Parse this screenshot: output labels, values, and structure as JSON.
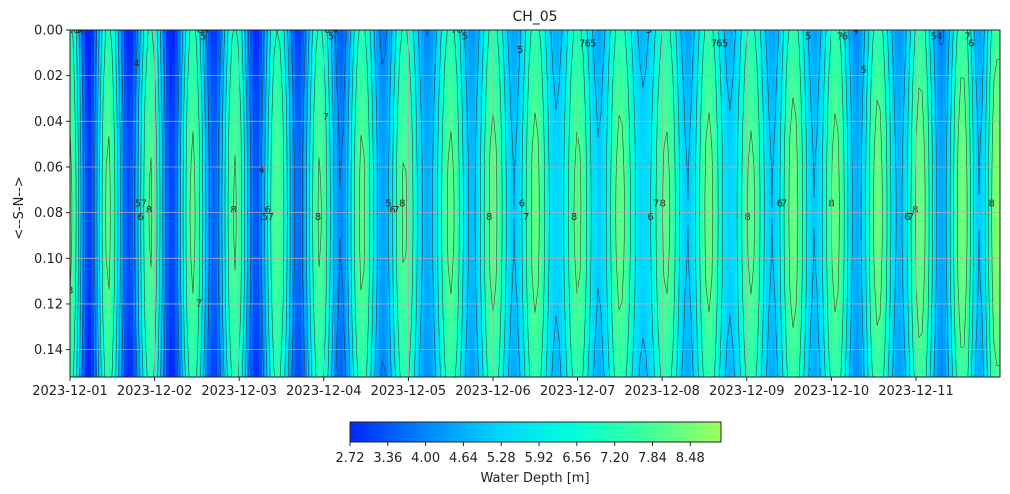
{
  "chart_data": {
    "type": "heatmap",
    "title": "CH_05",
    "xlabel": "",
    "ylabel": "<--S-N-->",
    "ylim": [
      0.0,
      0.152
    ],
    "y_inverted": true,
    "x_tick_labels": [
      "2023-12-01",
      "2023-12-02",
      "2023-12-03",
      "2023-12-04",
      "2023-12-05",
      "2023-12-06",
      "2023-12-07",
      "2023-12-08",
      "2023-12-09",
      "2023-12-10",
      "2023-12-11"
    ],
    "x_range_days": [
      0,
      10.95
    ],
    "y_tick_labels": [
      "0.00",
      "0.02",
      "0.04",
      "0.06",
      "0.08",
      "0.10",
      "0.12",
      "0.14"
    ],
    "y_ticks": [
      0.0,
      0.02,
      0.04,
      0.06,
      0.08,
      0.1,
      0.12,
      0.14
    ],
    "grid": true,
    "colormap": "jet-green",
    "colorbar": {
      "label": "Water Depth [m]",
      "min": 2.72,
      "max": 9.0,
      "ticks": [
        "2.72",
        "3.36",
        "4.00",
        "4.64",
        "5.28",
        "5.92",
        "6.56",
        "7.20",
        "7.84",
        "8.48"
      ],
      "orientation": "horizontal",
      "colors": [
        "#0026ff",
        "#0085ff",
        "#00d5ff",
        "#00ffd9",
        "#3cff9c",
        "#9cff5c"
      ]
    },
    "contour_levels": [
      4,
      5,
      6,
      7,
      8
    ],
    "tidal_pattern": {
      "period_days": 0.5,
      "high_water_peaks_days": [
        0.0,
        0.45,
        0.95,
        1.45,
        1.95,
        2.45,
        2.95,
        3.45,
        3.95,
        4.5,
        5.0,
        5.5,
        6.0,
        6.5,
        7.05,
        7.55,
        8.05,
        8.55,
        9.05,
        9.55,
        10.05,
        10.55,
        10.95
      ],
      "high_water_depth": [
        8.2,
        8.2,
        8.1,
        8.2,
        8.1,
        8.0,
        8.1,
        8.2,
        8.1,
        8.2,
        8.3,
        8.3,
        8.2,
        8.3,
        8.2,
        8.3,
        8.2,
        8.4,
        8.3,
        8.4,
        8.5,
        8.6,
        8.7
      ],
      "low_water_depth": [
        3.0,
        3.2,
        3.1,
        3.5,
        3.3,
        3.6,
        4.0,
        4.4,
        4.6,
        4.8,
        5.0,
        5.2,
        5.1,
        5.3,
        5.0,
        5.2,
        5.0,
        5.0,
        4.6,
        4.8,
        4.5,
        5.0
      ],
      "center_y": 0.08
    }
  }
}
